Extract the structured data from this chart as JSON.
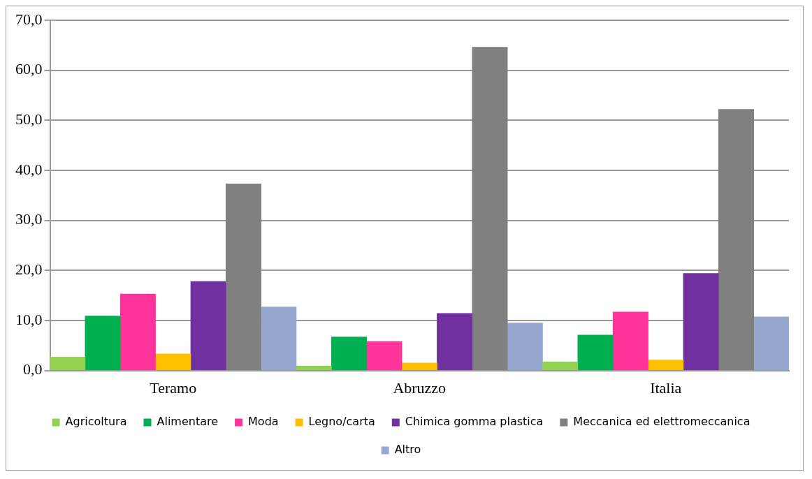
{
  "chart_data": {
    "type": "bar",
    "categories": [
      "Teramo",
      "Abruzzo",
      "Italia"
    ],
    "series": [
      {
        "name": "Agricoltura",
        "color": "#92d050",
        "values": [
          2.7,
          0.9,
          1.7
        ]
      },
      {
        "name": "Alimentare",
        "color": "#00b050",
        "values": [
          10.9,
          6.7,
          7.1
        ]
      },
      {
        "name": "Moda",
        "color": "#ff3399",
        "values": [
          15.3,
          5.8,
          11.7
        ]
      },
      {
        "name": "Legno/carta",
        "color": "#ffc000",
        "values": [
          3.3,
          1.5,
          2.1
        ]
      },
      {
        "name": "Chimica gomma plastica",
        "color": "#7030a0",
        "values": [
          17.8,
          11.4,
          19.4
        ]
      },
      {
        "name": "Meccanica ed elettromeccanica",
        "color": "#808080",
        "values": [
          37.3,
          64.6,
          52.2
        ]
      },
      {
        "name": "Altro",
        "color": "#95a9d0",
        "values": [
          12.7,
          9.5,
          10.7
        ]
      }
    ],
    "ylim": [
      0,
      70
    ],
    "yticks": [
      {
        "value": 0,
        "label": "0,0"
      },
      {
        "value": 10,
        "label": "10,0"
      },
      {
        "value": 20,
        "label": "20,0"
      },
      {
        "value": 30,
        "label": "30,0"
      },
      {
        "value": 40,
        "label": "40,0"
      },
      {
        "value": 50,
        "label": "50,0"
      },
      {
        "value": 60,
        "label": "60,0"
      },
      {
        "value": 70,
        "label": "70,0"
      }
    ],
    "grid": "y",
    "legend": "bottom"
  }
}
